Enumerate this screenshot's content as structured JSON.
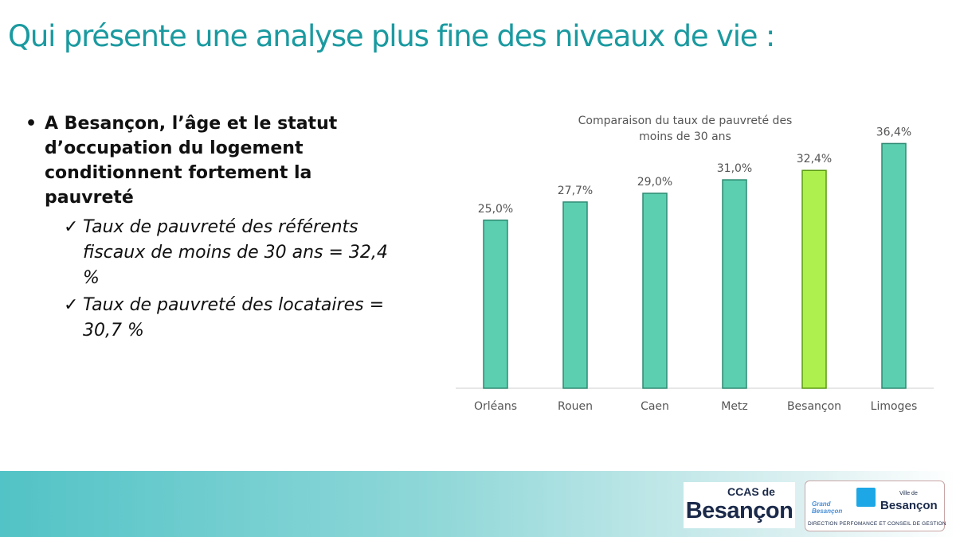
{
  "slide": {
    "title": "Qui présente une analyse plus fine des niveaux de vie :"
  },
  "bullets": {
    "main": "A Besançon, l’âge et le statut d’occupation du logement conditionnent fortement la pauvreté",
    "marker": "•",
    "check_glyph": "✓",
    "subs": [
      "Taux de pauvreté des référents fiscaux de moins de 30 ans = 32,4 %",
      "Taux de pauvreté des locataires = 30,7 %"
    ]
  },
  "chart_data": {
    "type": "bar",
    "title_lines": [
      "Comparaison du taux de  pauvreté des",
      "moins de 30 ans"
    ],
    "categories": [
      "Orléans",
      "Rouen",
      "Caen",
      "Metz",
      "Besançon",
      "Limoges"
    ],
    "values": [
      25.0,
      27.7,
      29.0,
      31.0,
      32.4,
      36.4
    ],
    "value_labels": [
      "25,0%",
      "27,7%",
      "29,0%",
      "31,0%",
      "32,4%",
      "36,4%"
    ],
    "ylim": [
      0,
      40
    ],
    "grid": false,
    "highlight_category": "Besançon",
    "colors": {
      "bar": "#5ccfb0",
      "bar_edge": "#2e8a72",
      "highlight": "#aef04d",
      "highlight_edge": "#5a9a10",
      "label": "#555555",
      "axis": "#cfcfcf"
    }
  },
  "footer": {
    "band_color": "#52c3c6",
    "ccas_logo": {
      "top": "CCAS de",
      "city": "Besançon"
    },
    "ville_logo": {
      "grand": [
        "Grand",
        "Besançon"
      ],
      "top": "Ville de",
      "city": "Besançon",
      "direction": "DIRECTION PERFOMANCE ET CONSEIL DE GESTION"
    }
  }
}
